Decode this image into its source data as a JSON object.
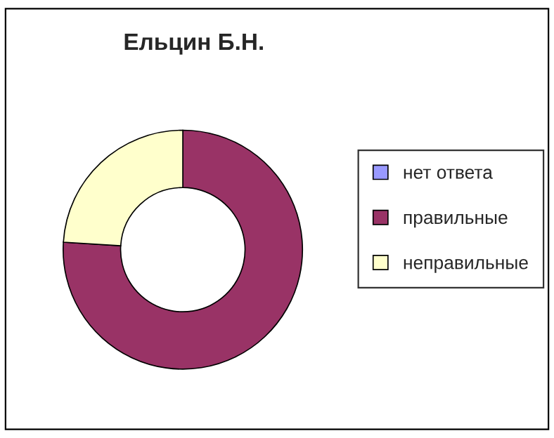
{
  "chart_data": {
    "type": "donut",
    "title": "Ельцин Б.Н.",
    "categories": [
      "нет ответа",
      "правильные",
      "неправильные"
    ],
    "values": [
      0,
      76,
      24
    ],
    "colors": [
      "#9999ff",
      "#993366",
      "#ffffcc"
    ],
    "legend": "right"
  }
}
